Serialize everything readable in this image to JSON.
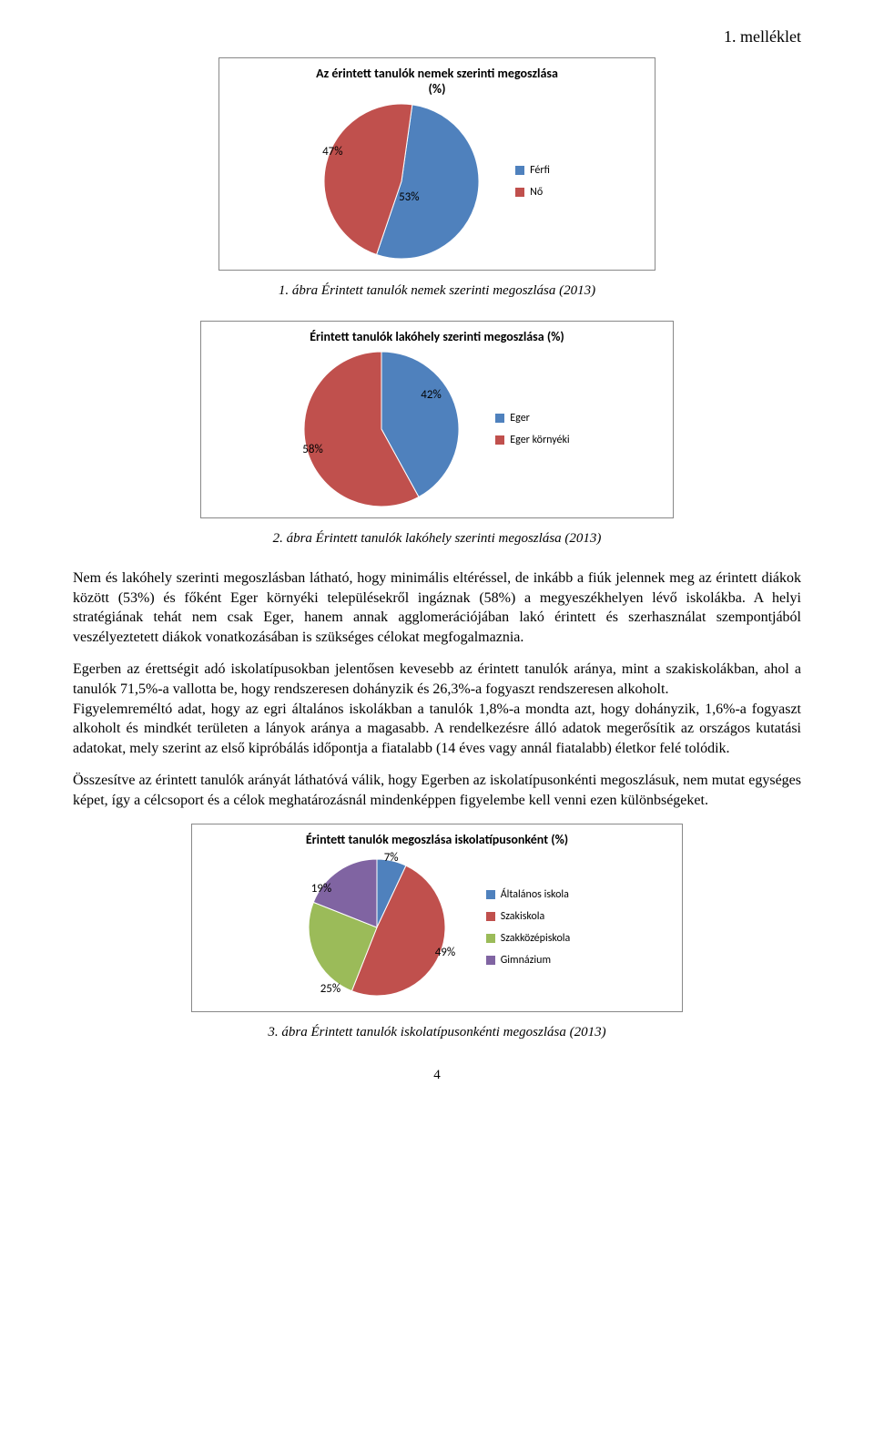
{
  "header": {
    "annex": "1. melléklet"
  },
  "chart1": {
    "type": "pie",
    "title": "Az érintett tanulók nemek szerinti megoszlása\n(%)",
    "slices": [
      {
        "label": "Férfi",
        "value": 53,
        "text": "53%",
        "color": "#4f81bd"
      },
      {
        "label": "Nő",
        "value": 47,
        "text": "47%",
        "color": "#c0504d"
      }
    ],
    "legend": [
      {
        "label": "Férfi",
        "color": "#4f81bd"
      },
      {
        "label": "Nő",
        "color": "#c0504d"
      }
    ],
    "border_color": "#888888",
    "background": "#ffffff",
    "title_fontsize": 14,
    "pie_radius": 85
  },
  "caption1": "1. ábra Érintett tanulók nemek szerinti megoszlása (2013)",
  "chart2": {
    "type": "pie",
    "title": "Érintett tanulók lakóhely szerinti megoszlása (%)",
    "slices": [
      {
        "label": "Eger",
        "value": 42,
        "text": "42%",
        "color": "#4f81bd"
      },
      {
        "label": "Eger környéki",
        "value": 58,
        "text": "58%",
        "color": "#c0504d"
      }
    ],
    "legend": [
      {
        "label": "Eger",
        "color": "#4f81bd"
      },
      {
        "label": "Eger környéki",
        "color": "#c0504d"
      }
    ],
    "border_color": "#888888",
    "background": "#ffffff",
    "title_fontsize": 14,
    "pie_radius": 85
  },
  "caption2": "2. ábra Érintett tanulók lakóhely szerinti megoszlása (2013)",
  "para1": "Nem és lakóhely szerinti megoszlásban látható, hogy minimális eltéréssel, de inkább a fiúk jelennek meg az érintett diákok között (53%) és főként Eger környéki településekről ingáznak (58%) a megyeszékhelyen lévő iskolákba. A helyi stratégiának tehát nem csak Eger, hanem annak agglomerációjában lakó érintett és szerhasználat szempontjából veszélyeztetett diákok vonatkozásában is szükséges célokat megfogalmaznia.",
  "para2": "Egerben az érettségit adó iskolatípusokban jelentősen kevesebb az érintett tanulók aránya, mint a szakiskolákban, ahol a tanulók 71,5%-a vallotta be, hogy rendszeresen dohányzik és 26,3%-a fogyaszt rendszeresen alkoholt.",
  "para3": "Figyelemreméltó adat, hogy az egri általános iskolákban a tanulók 1,8%-a mondta azt, hogy dohányzik, 1,6%-a fogyaszt alkoholt és mindkét területen a lányok aránya a magasabb. A rendelkezésre álló adatok megerősítik az országos kutatási adatokat, mely szerint az első kipróbálás időpontja a fiatalabb (14 éves vagy annál fiatalabb) életkor felé tolódik.",
  "para4": "Összesítve az érintett tanulók arányát láthatóvá válik, hogy Egerben az iskolatípusonkénti megoszlásuk, nem mutat egységes képet, így a célcsoport és a célok meghatározásnál mindenképpen figyelembe kell venni ezen különbségeket.",
  "chart3": {
    "type": "pie",
    "title": "Érintett tanulók megoszlása iskolatípusonként (%)",
    "slices": [
      {
        "label": "Általános iskola",
        "value": 7,
        "text": "7%",
        "color": "#4f81bd"
      },
      {
        "label": "Szakiskola",
        "value": 49,
        "text": "49%",
        "color": "#c0504d"
      },
      {
        "label": "Szakközépiskola",
        "value": 25,
        "text": "25%",
        "color": "#9bbb59"
      },
      {
        "label": "Gimnázium",
        "value": 19,
        "text": "19%",
        "color": "#8064a2"
      }
    ],
    "legend": [
      {
        "label": "Általános iskola",
        "color": "#4f81bd"
      },
      {
        "label": "Szakiskola",
        "color": "#c0504d"
      },
      {
        "label": "Szakközépiskola",
        "color": "#9bbb59"
      },
      {
        "label": "Gimnázium",
        "color": "#8064a2"
      }
    ],
    "border_color": "#888888",
    "background": "#ffffff",
    "title_fontsize": 14,
    "pie_radius": 75
  },
  "caption3": "3. ábra Érintett tanulók iskolatípusonkénti megoszlása (2013)",
  "page_number": "4"
}
